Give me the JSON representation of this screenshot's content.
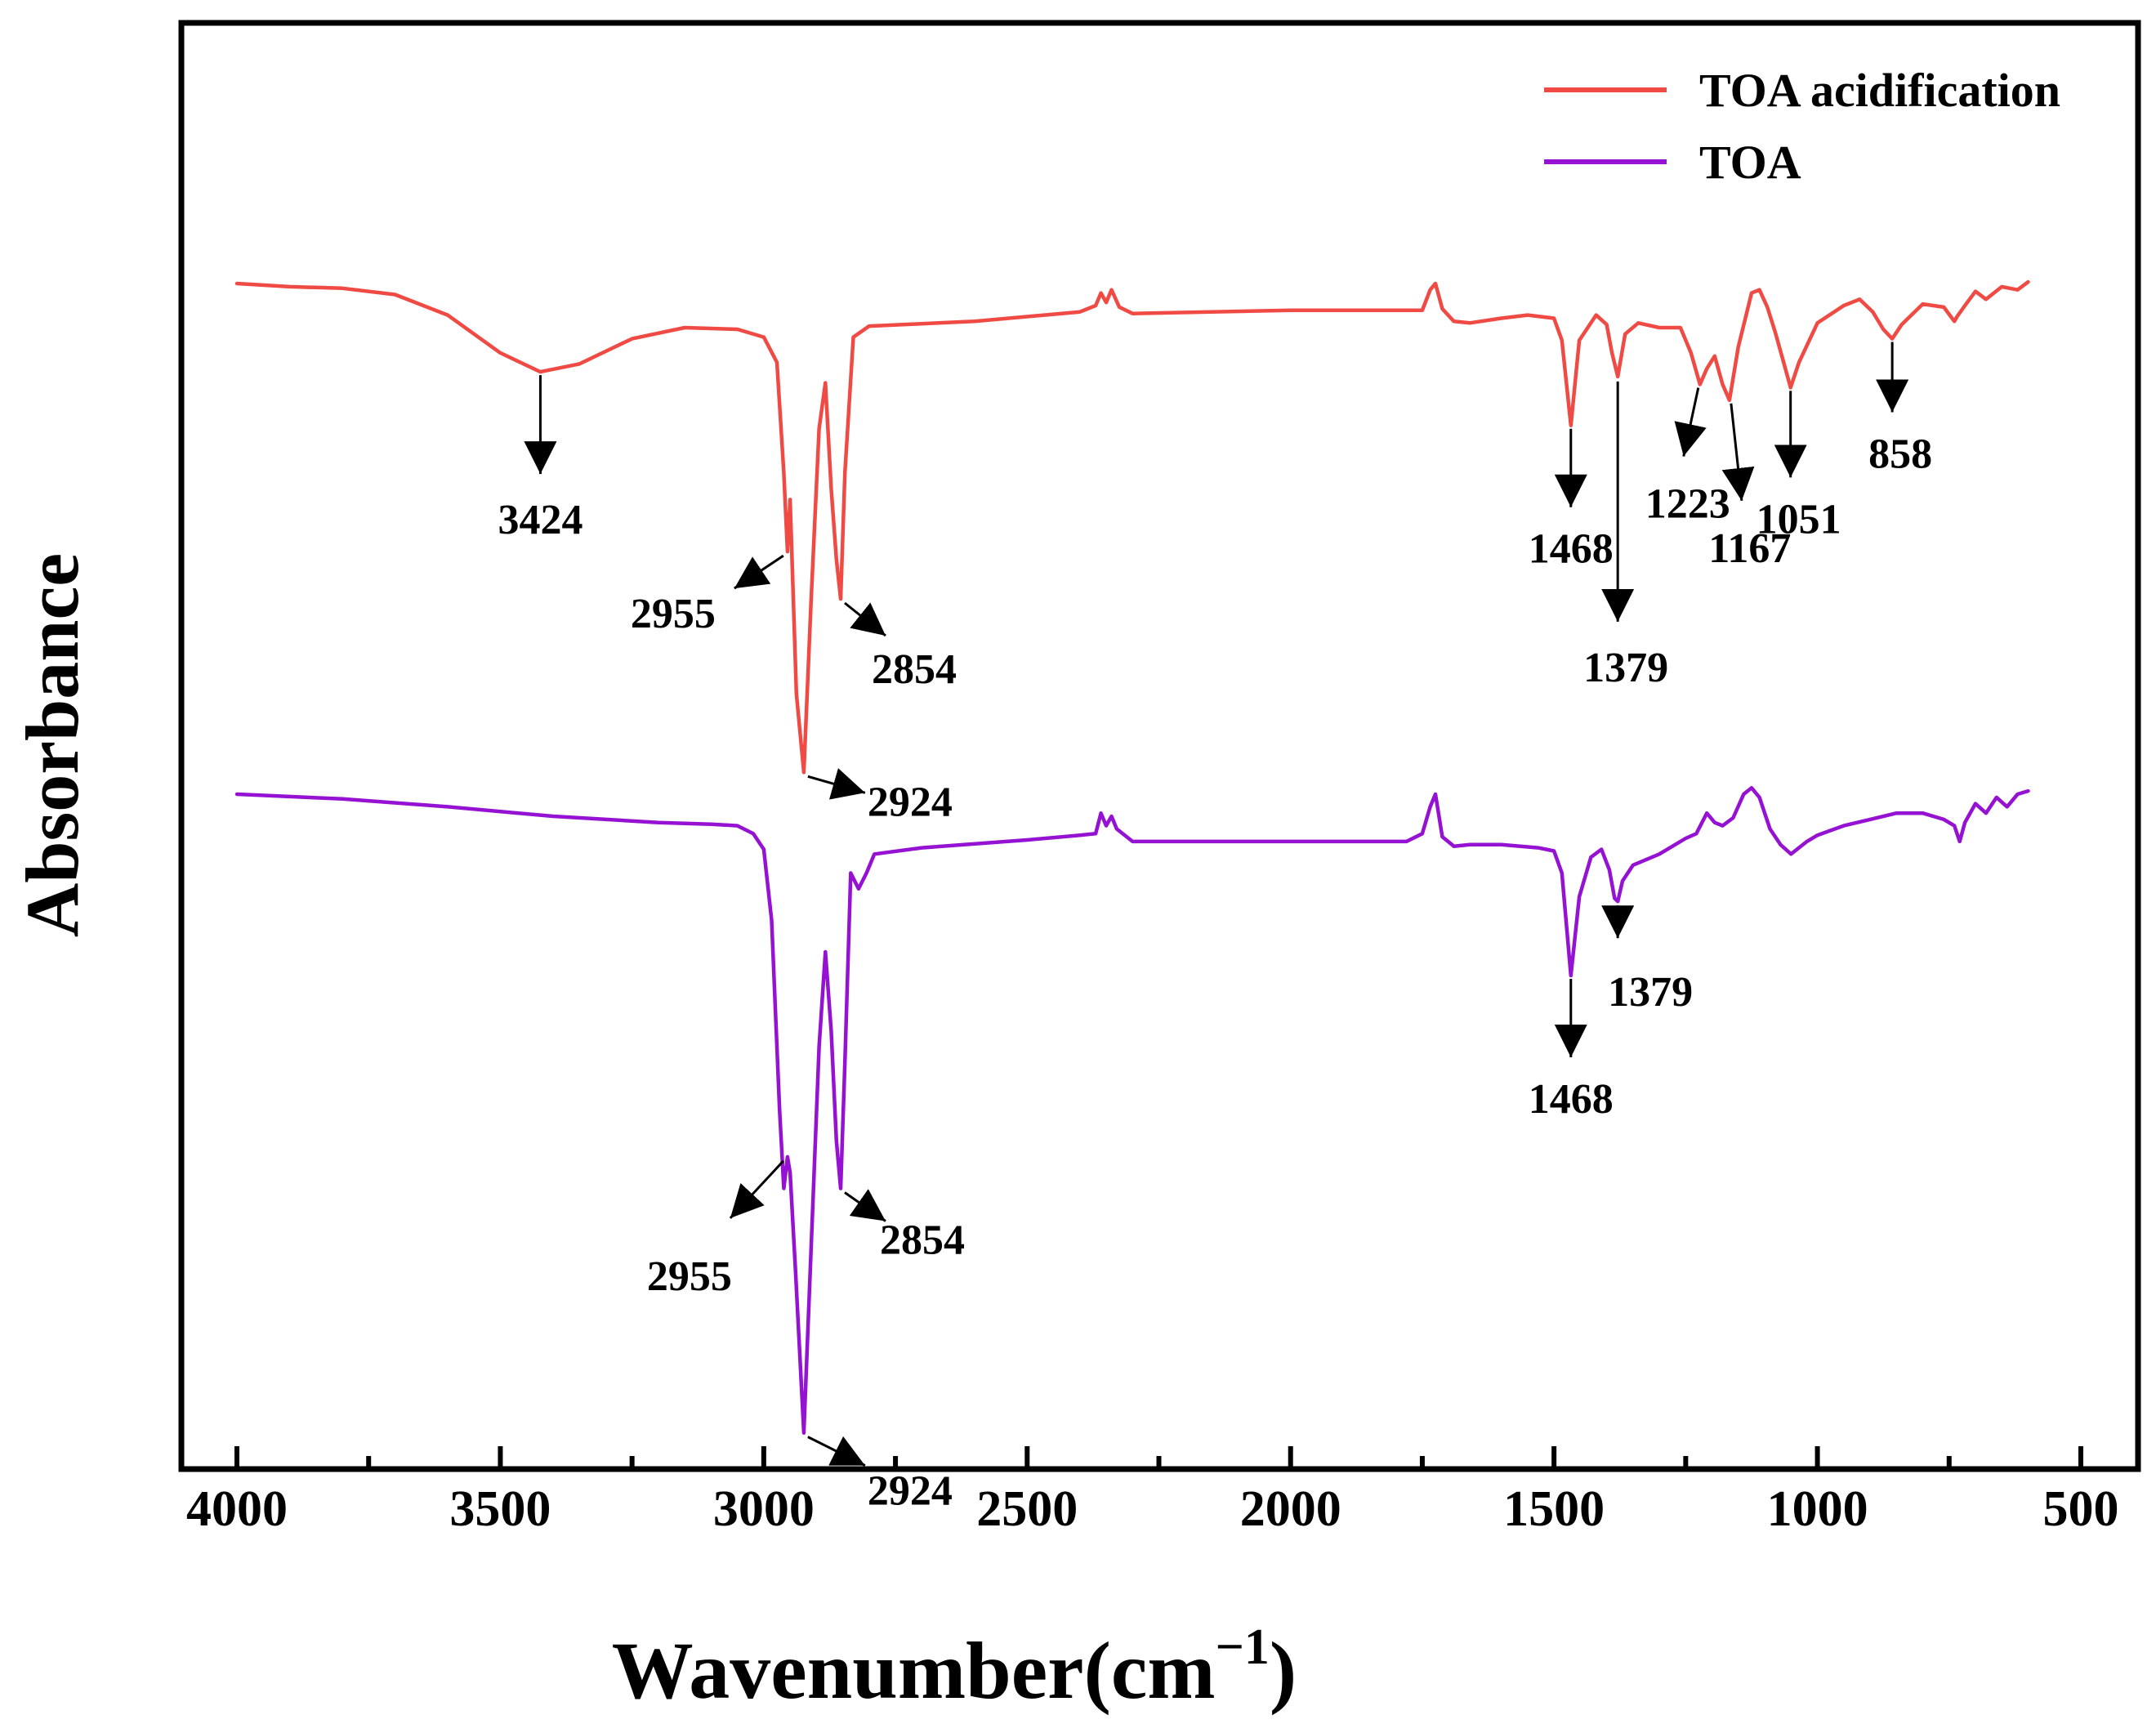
{
  "chart_data": {
    "type": "line",
    "title": "",
    "xlabel": "Wavenumber(cm",
    "xlabel_sup": "−1",
    "xlabel_close": ")",
    "ylabel": "Absorbance",
    "xlim": [
      4000,
      500
    ],
    "x_reversed": true,
    "yticks_shown": false,
    "grid": false,
    "legend_position": "top-right",
    "xticks": [
      4000,
      3500,
      3000,
      2500,
      2000,
      1500,
      1000,
      500
    ],
    "xtick_labels": [
      "4000",
      "3500",
      "3000",
      "2500",
      "2000",
      "1500",
      "1000",
      "500"
    ],
    "series": [
      {
        "name": "TOA acidification",
        "color": "#f04a45",
        "baseline": 10,
        "points": [
          [
            4000,
            10
          ],
          [
            3900,
            9.8
          ],
          [
            3800,
            9.7
          ],
          [
            3700,
            9.3
          ],
          [
            3600,
            8
          ],
          [
            3500,
            5.6
          ],
          [
            3424,
            4.4
          ],
          [
            3350,
            4.9
          ],
          [
            3250,
            6.5
          ],
          [
            3150,
            7.2
          ],
          [
            3050,
            7.1
          ],
          [
            3000,
            6.6
          ],
          [
            2975,
            5
          ],
          [
            2962,
            -2
          ],
          [
            2955,
            -7
          ],
          [
            2950,
            -3.7
          ],
          [
            2938,
            -16
          ],
          [
            2924,
            -21
          ],
          [
            2910,
            -10
          ],
          [
            2895,
            0.8
          ],
          [
            2883,
            3.7
          ],
          [
            2872,
            -3
          ],
          [
            2862,
            -7.5
          ],
          [
            2854,
            -10
          ],
          [
            2846,
            -2
          ],
          [
            2830,
            6.6
          ],
          [
            2800,
            7.3
          ],
          [
            2600,
            7.6
          ],
          [
            2400,
            8.2
          ],
          [
            2370,
            8.6
          ],
          [
            2360,
            9.4
          ],
          [
            2350,
            8.8
          ],
          [
            2340,
            9.6
          ],
          [
            2325,
            8.5
          ],
          [
            2300,
            8.1
          ],
          [
            2000,
            8.3
          ],
          [
            1780,
            8.3
          ],
          [
            1750,
            8.3
          ],
          [
            1735,
            9.6
          ],
          [
            1725,
            10
          ],
          [
            1712,
            8.4
          ],
          [
            1690,
            7.6
          ],
          [
            1660,
            7.5
          ],
          [
            1600,
            7.8
          ],
          [
            1550,
            8
          ],
          [
            1500,
            7.8
          ],
          [
            1485,
            6.4
          ],
          [
            1468,
            1
          ],
          [
            1452,
            6.4
          ],
          [
            1420,
            8
          ],
          [
            1400,
            7.4
          ],
          [
            1390,
            5.6
          ],
          [
            1379,
            4.1
          ],
          [
            1365,
            6.8
          ],
          [
            1340,
            7.5
          ],
          [
            1300,
            7.2
          ],
          [
            1260,
            7.2
          ],
          [
            1240,
            5.6
          ],
          [
            1223,
            3.6
          ],
          [
            1210,
            4.6
          ],
          [
            1195,
            5.4
          ],
          [
            1180,
            3.6
          ],
          [
            1167,
            2.6
          ],
          [
            1150,
            6
          ],
          [
            1125,
            9.4
          ],
          [
            1110,
            9.6
          ],
          [
            1095,
            8.5
          ],
          [
            1080,
            6.9
          ],
          [
            1065,
            5.1
          ],
          [
            1051,
            3.4
          ],
          [
            1035,
            5
          ],
          [
            1000,
            7.5
          ],
          [
            950,
            8.6
          ],
          [
            920,
            9
          ],
          [
            895,
            8.2
          ],
          [
            875,
            7.1
          ],
          [
            858,
            6.5
          ],
          [
            840,
            7.4
          ],
          [
            800,
            8.7
          ],
          [
            760,
            8.5
          ],
          [
            740,
            7.6
          ],
          [
            735,
            7.9
          ],
          [
            720,
            8.6
          ],
          [
            700,
            9.5
          ],
          [
            680,
            9
          ],
          [
            650,
            9.8
          ],
          [
            620,
            9.6
          ],
          [
            600,
            10.1
          ]
        ]
      },
      {
        "name": "TOA",
        "color": "#9512d2",
        "baseline": 0,
        "points": [
          [
            4000,
            0
          ],
          [
            3800,
            -0.3
          ],
          [
            3600,
            -0.8
          ],
          [
            3400,
            -1.4
          ],
          [
            3200,
            -1.8
          ],
          [
            3100,
            -1.9
          ],
          [
            3050,
            -2
          ],
          [
            3020,
            -2.5
          ],
          [
            3000,
            -3.5
          ],
          [
            2985,
            -8
          ],
          [
            2970,
            -20
          ],
          [
            2962,
            -25
          ],
          [
            2955,
            -23
          ],
          [
            2950,
            -24
          ],
          [
            2940,
            -30
          ],
          [
            2924,
            -40.5
          ],
          [
            2908,
            -27
          ],
          [
            2895,
            -16
          ],
          [
            2883,
            -10
          ],
          [
            2872,
            -15
          ],
          [
            2862,
            -22
          ],
          [
            2854,
            -25
          ],
          [
            2846,
            -17
          ],
          [
            2835,
            -5
          ],
          [
            2820,
            -6
          ],
          [
            2805,
            -5
          ],
          [
            2790,
            -3.8
          ],
          [
            2700,
            -3.4
          ],
          [
            2500,
            -2.9
          ],
          [
            2400,
            -2.6
          ],
          [
            2370,
            -2.5
          ],
          [
            2360,
            -1.2
          ],
          [
            2350,
            -2
          ],
          [
            2340,
            -1.4
          ],
          [
            2330,
            -2.2
          ],
          [
            2300,
            -3
          ],
          [
            2000,
            -3
          ],
          [
            1780,
            -3
          ],
          [
            1750,
            -2.5
          ],
          [
            1735,
            -0.8
          ],
          [
            1725,
            0
          ],
          [
            1712,
            -2.7
          ],
          [
            1690,
            -3.3
          ],
          [
            1660,
            -3.2
          ],
          [
            1600,
            -3.2
          ],
          [
            1530,
            -3.4
          ],
          [
            1500,
            -3.6
          ],
          [
            1485,
            -5
          ],
          [
            1468,
            -11.5
          ],
          [
            1452,
            -6.5
          ],
          [
            1430,
            -4
          ],
          [
            1410,
            -3.5
          ],
          [
            1395,
            -4.8
          ],
          [
            1385,
            -6.6
          ],
          [
            1379,
            -6.8
          ],
          [
            1370,
            -5.5
          ],
          [
            1350,
            -4.5
          ],
          [
            1300,
            -3.8
          ],
          [
            1250,
            -2.8
          ],
          [
            1230,
            -2.5
          ],
          [
            1210,
            -1.2
          ],
          [
            1195,
            -1.8
          ],
          [
            1180,
            -2
          ],
          [
            1160,
            -1.5
          ],
          [
            1140,
            0
          ],
          [
            1125,
            0.4
          ],
          [
            1110,
            -0.2
          ],
          [
            1090,
            -2.2
          ],
          [
            1070,
            -3.2
          ],
          [
            1050,
            -3.8
          ],
          [
            1020,
            -3
          ],
          [
            1000,
            -2.6
          ],
          [
            950,
            -2
          ],
          [
            900,
            -1.6
          ],
          [
            850,
            -1.2
          ],
          [
            800,
            -1.2
          ],
          [
            760,
            -1.6
          ],
          [
            740,
            -2
          ],
          [
            730,
            -3
          ],
          [
            720,
            -1.8
          ],
          [
            700,
            -0.6
          ],
          [
            680,
            -1.2
          ],
          [
            660,
            -0.2
          ],
          [
            640,
            -0.8
          ],
          [
            620,
            0
          ],
          [
            600,
            0.2
          ]
        ]
      }
    ],
    "legend": [
      {
        "label": "TOA acidification",
        "color": "#f04a45"
      },
      {
        "label": "TOA",
        "color": "#9512d2"
      }
    ],
    "annotations": [
      {
        "label": "3424",
        "series": "TOA acidification",
        "x": 3424
      },
      {
        "label": "2955",
        "series": "TOA acidification",
        "x": 2955
      },
      {
        "label": "2924",
        "series": "TOA acidification",
        "x": 2924
      },
      {
        "label": "2854",
        "series": "TOA acidification",
        "x": 2854
      },
      {
        "label": "1468",
        "series": "TOA acidification",
        "x": 1468
      },
      {
        "label": "1379",
        "series": "TOA acidification",
        "x": 1379
      },
      {
        "label": "1223",
        "series": "TOA acidification",
        "x": 1223
      },
      {
        "label": "1167",
        "series": "TOA acidification",
        "x": 1167
      },
      {
        "label": "1051",
        "series": "TOA acidification",
        "x": 1051
      },
      {
        "label": "858",
        "series": "TOA acidification",
        "x": 858
      },
      {
        "label": "2955",
        "series": "TOA",
        "x": 2955
      },
      {
        "label": "2924",
        "series": "TOA",
        "x": 2924
      },
      {
        "label": "2854",
        "series": "TOA",
        "x": 2854
      },
      {
        "label": "1468",
        "series": "TOA",
        "x": 1468
      },
      {
        "label": "1379",
        "series": "TOA",
        "x": 1379
      }
    ]
  }
}
